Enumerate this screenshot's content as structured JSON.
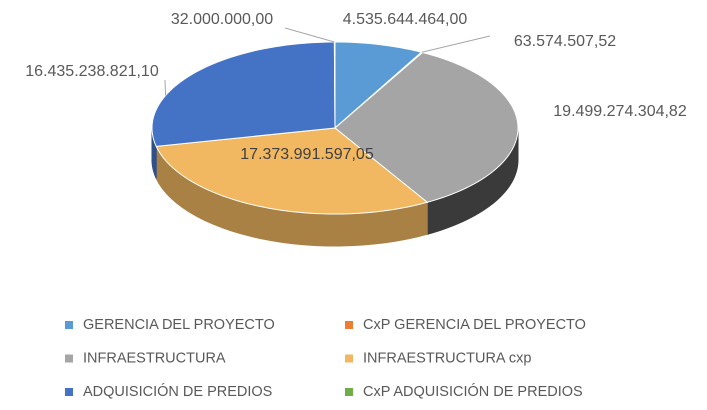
{
  "chart_data": {
    "type": "pie",
    "categories": [
      "GERENCIA DEL PROYECTO",
      "CxP GERENCIA DEL PROYECTO",
      "INFRAESTRUCTURA",
      "INFRAESTRUCTURA cxp",
      "ADQUISICIÓN DE PREDIOS",
      "CxP ADQUISICIÓN DE PREDIOS"
    ],
    "values": [
      4535644464.0,
      63574507.52,
      19499274304.82,
      17373991597.05,
      16435238821.1,
      32000000.0
    ],
    "value_labels": [
      "4.535.644.464,00",
      "63.574.507,52",
      "19.499.274.304,82",
      "17.373.991.597,05",
      "16.435.238.821,10",
      "32.000.000,00"
    ],
    "colors": [
      "#5b9bd5",
      "#ed7d31",
      "#a5a5a5",
      "#f2b861",
      "#4472c4",
      "#70ad47"
    ],
    "legend": "bottom"
  }
}
